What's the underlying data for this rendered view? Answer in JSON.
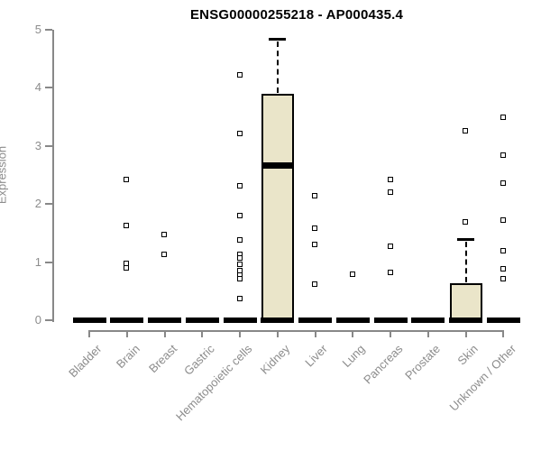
{
  "window": {
    "background": "#FFFFFF"
  },
  "chart_data": {
    "type": "boxplot",
    "title": "ENSG00000255218 - AP000435.4",
    "ylabel": "Expression",
    "xlabel": "",
    "ylim": [
      0,
      5
    ],
    "yticks": [
      0,
      1,
      2,
      3,
      4,
      5
    ],
    "grid": false,
    "legend": null,
    "categories": [
      "Bladder",
      "Brain",
      "Breast",
      "Gastric",
      "Hematopoietic cells",
      "Kidney",
      "Liver",
      "Lung",
      "Pancreas",
      "Prostate",
      "Skin",
      "Unknown / Other"
    ],
    "boxes": [
      {
        "category": "Bladder",
        "whisker_low": 0,
        "q1": 0,
        "median": 0,
        "q3": 0,
        "whisker_high": 0,
        "outliers": []
      },
      {
        "category": "Brain",
        "whisker_low": 0,
        "q1": 0,
        "median": 0,
        "q3": 0,
        "whisker_high": 0,
        "outliers": [
          2.41,
          1.63,
          0.97,
          0.89
        ]
      },
      {
        "category": "Breast",
        "whisker_low": 0,
        "q1": 0,
        "median": 0,
        "q3": 0,
        "whisker_high": 0,
        "outliers": [
          1.47,
          1.13
        ]
      },
      {
        "category": "Gastric",
        "whisker_low": 0,
        "q1": 0,
        "median": 0,
        "q3": 0,
        "whisker_high": 0,
        "outliers": []
      },
      {
        "category": "Hematopoietic cells",
        "whisker_low": 0,
        "q1": 0,
        "median": 0,
        "q3": 0,
        "whisker_high": 0,
        "outliers": [
          4.22,
          3.2,
          2.31,
          1.8,
          1.37,
          1.13,
          1.06,
          0.95,
          0.84,
          0.77,
          0.7,
          0.36
        ]
      },
      {
        "category": "Kidney",
        "whisker_low": 0,
        "q1": 0,
        "median": 2.66,
        "q3": 3.9,
        "whisker_high": 4.85,
        "outliers": []
      },
      {
        "category": "Liver",
        "whisker_low": 0,
        "q1": 0,
        "median": 0,
        "q3": 0,
        "whisker_high": 0,
        "outliers": [
          2.13,
          1.57,
          1.29,
          0.61
        ]
      },
      {
        "category": "Lung",
        "whisker_low": 0,
        "q1": 0,
        "median": 0,
        "q3": 0,
        "whisker_high": 0,
        "outliers": [
          0.78
        ]
      },
      {
        "category": "Pancreas",
        "whisker_low": 0,
        "q1": 0,
        "median": 0,
        "q3": 0,
        "whisker_high": 0,
        "outliers": [
          2.41,
          2.2,
          1.26,
          0.81
        ]
      },
      {
        "category": "Prostate",
        "whisker_low": 0,
        "q1": 0,
        "median": 0,
        "q3": 0,
        "whisker_high": 0,
        "outliers": []
      },
      {
        "category": "Skin",
        "whisker_low": 0,
        "q1": 0,
        "median": 0,
        "q3": 0.63,
        "whisker_high": 1.4,
        "outliers": [
          3.26,
          1.68
        ]
      },
      {
        "category": "Unknown / Other",
        "whisker_low": 0,
        "q1": 0,
        "median": 0,
        "q3": 0,
        "whisker_high": 0,
        "outliers": [
          3.49,
          2.84,
          2.36,
          1.71,
          1.19,
          0.87,
          0.71
        ]
      }
    ],
    "colors": {
      "box_fill": "#EAE5C9",
      "box_border": "#000000",
      "median": "#000000",
      "axis": "#888888",
      "tick_label": "#8C8C8C",
      "title": "#000000",
      "background": "#FFFFFF"
    }
  }
}
